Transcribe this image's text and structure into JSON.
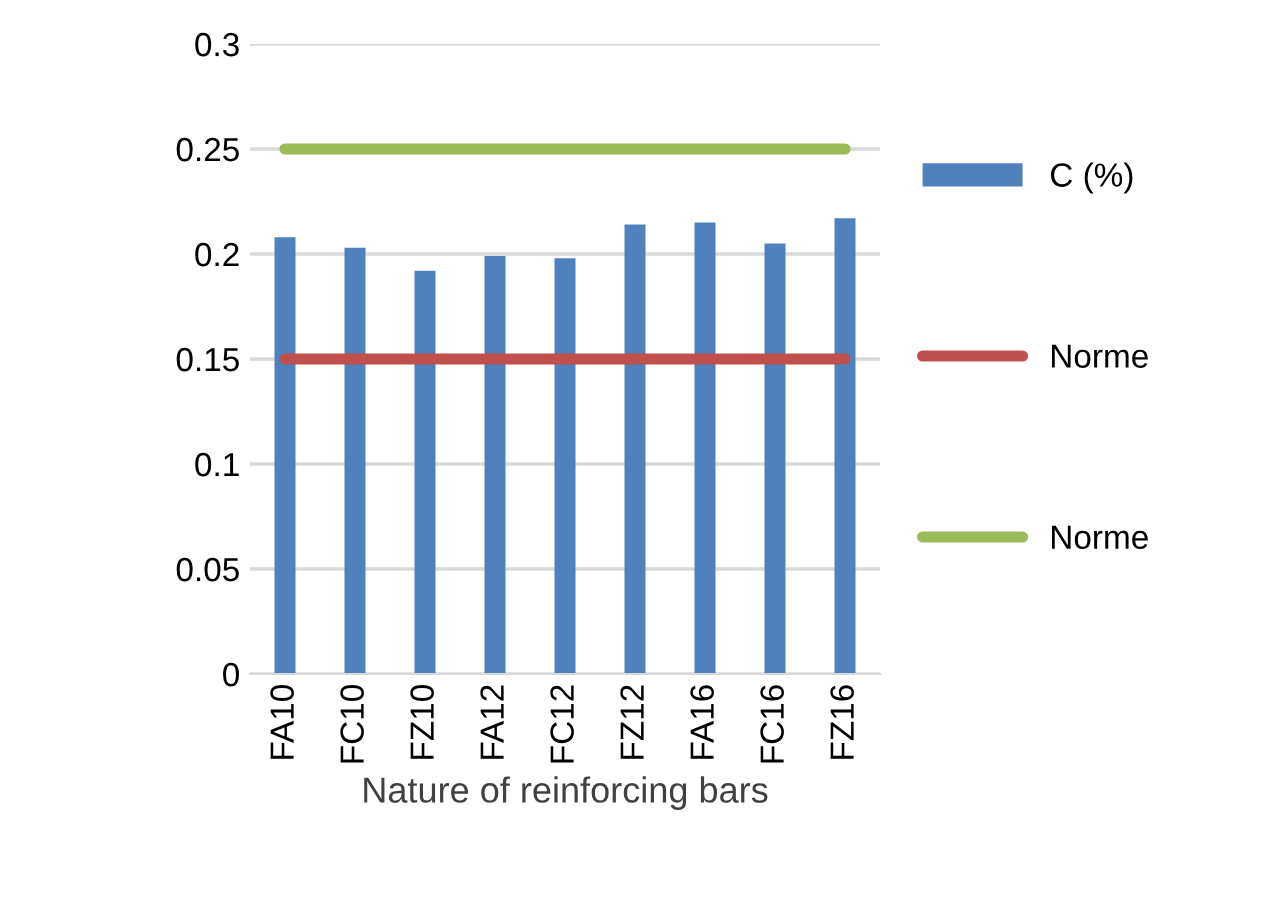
{
  "chart_data": {
    "type": "bar",
    "xlabel": "Nature of reinforcing bars",
    "categories": [
      "FA10",
      "FC10",
      "FZ10",
      "FA12",
      "FC12",
      "FZ12",
      "FA16",
      "FC16",
      "FZ16"
    ],
    "series": [
      {
        "name": "C (%)",
        "color": "#4f81bd",
        "values": [
          0.208,
          0.203,
          0.192,
          0.199,
          0.198,
          0.214,
          0.215,
          0.205,
          0.217
        ]
      },
      {
        "name": "Norme",
        "type": "line",
        "color": "#c0504d",
        "values": [
          0.15,
          0.15,
          0.15,
          0.15,
          0.15,
          0.15,
          0.15,
          0.15,
          0.15
        ]
      },
      {
        "name": "Norme",
        "type": "line",
        "color": "#9bbb59",
        "values": [
          0.25,
          0.25,
          0.25,
          0.25,
          0.25,
          0.25,
          0.25,
          0.25,
          0.25
        ]
      }
    ],
    "ylim": [
      0,
      0.3
    ],
    "yticks": [
      0,
      0.05,
      0.1,
      0.15,
      0.2,
      0.25,
      0.3
    ],
    "grid": "y",
    "legend": "right"
  }
}
